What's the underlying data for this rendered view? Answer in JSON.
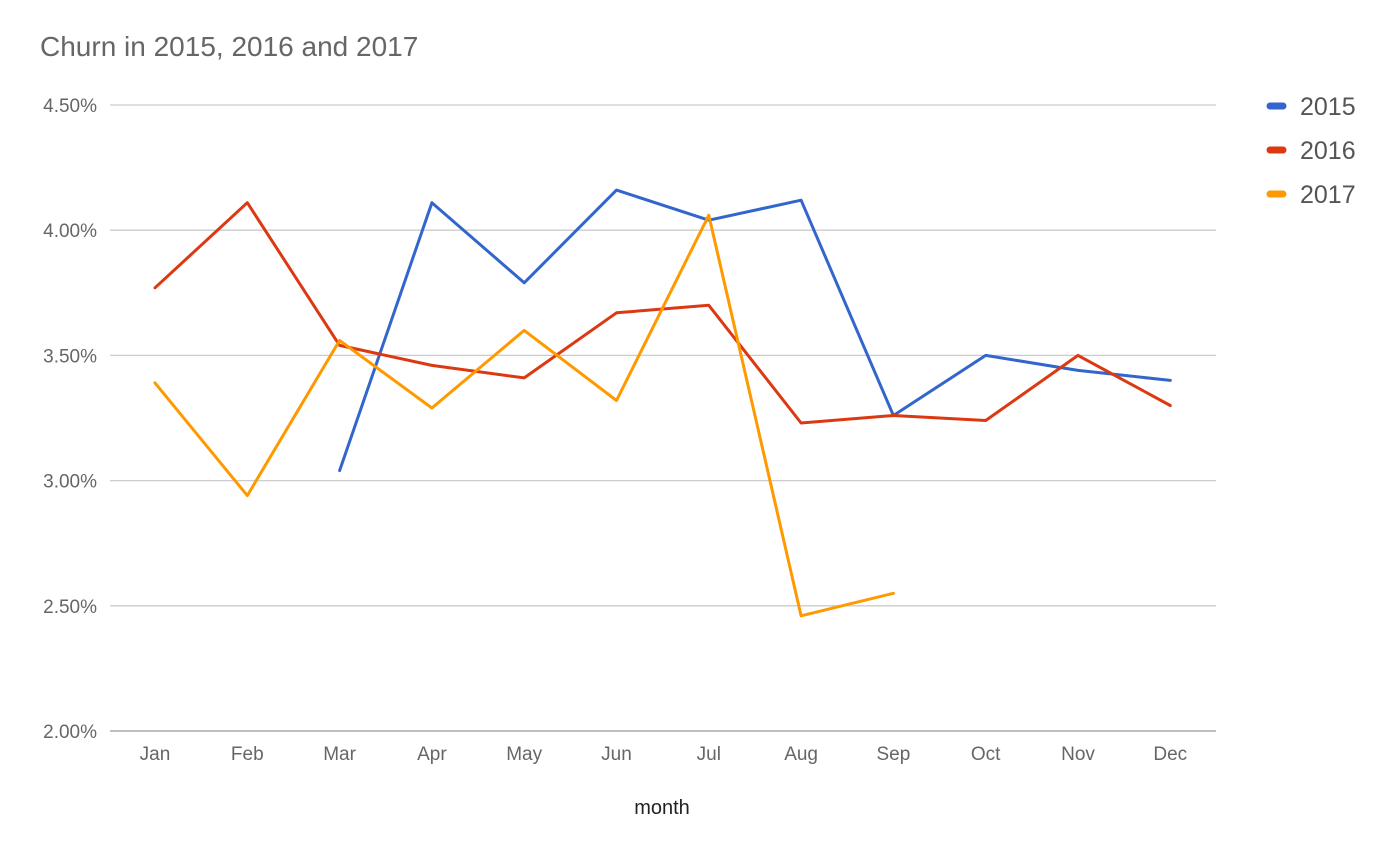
{
  "chart_data": {
    "type": "line",
    "title": "Churn in 2015, 2016 and 2017",
    "xlabel": "month",
    "ylabel": "",
    "categories": [
      "Jan",
      "Feb",
      "Mar",
      "Apr",
      "May",
      "Jun",
      "Jul",
      "Aug",
      "Sep",
      "Oct",
      "Nov",
      "Dec"
    ],
    "ylim": [
      2.0,
      4.5
    ],
    "yticks": [
      2.0,
      2.5,
      3.0,
      3.5,
      4.0,
      4.5
    ],
    "ytick_labels": [
      "2.00%",
      "2.50%",
      "3.00%",
      "3.50%",
      "4.00%",
      "4.50%"
    ],
    "grid": true,
    "legend_position": "right",
    "series": [
      {
        "name": "2015",
        "color": "#3366cc",
        "values": [
          null,
          null,
          3.04,
          4.11,
          3.79,
          4.16,
          4.04,
          4.12,
          3.26,
          3.5,
          3.44,
          3.4
        ]
      },
      {
        "name": "2016",
        "color": "#dc3912",
        "values": [
          3.77,
          4.11,
          3.54,
          3.46,
          3.41,
          3.67,
          3.7,
          3.23,
          3.26,
          3.24,
          3.5,
          3.3
        ]
      },
      {
        "name": "2017",
        "color": "#ff9900",
        "values": [
          3.39,
          2.94,
          3.56,
          3.29,
          3.6,
          3.32,
          4.06,
          2.46,
          2.55,
          null,
          null,
          null
        ]
      }
    ]
  }
}
